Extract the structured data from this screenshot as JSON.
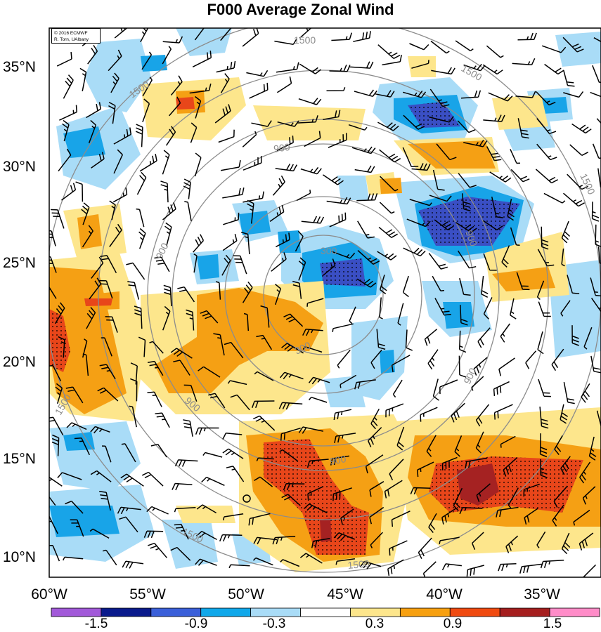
{
  "title": "F000 Average Zonal Wind",
  "copyright": {
    "line1": "© 2016 ECMWF",
    "line2": "R. Torn, UAlbany"
  },
  "map": {
    "lat_labels": [
      "35°N",
      "30°N",
      "25°N",
      "20°N",
      "15°N",
      "10°N"
    ],
    "lon_labels": [
      "60°W",
      "55°W",
      "50°W",
      "45°W",
      "40°W",
      "35°W"
    ],
    "contour_labels": [
      "1500",
      "1500",
      "1500",
      "1500",
      "900",
      "900",
      "900",
      "900",
      "900",
      "300",
      "300",
      "900",
      "1500",
      "1500",
      "1500"
    ],
    "contour_color": "#8c8c8c"
  },
  "colorbar": {
    "labels": [
      "-1.5",
      "-0.9",
      "-0.3",
      "0.3",
      "0.9",
      "1.5"
    ],
    "colors": [
      "#a259d9",
      "#0a1a8c",
      "#3a5fd9",
      "#10a8ea",
      "#a9dcf7",
      "#ffffff",
      "#fde68c",
      "#f7a010",
      "#f04a10",
      "#a51e1e",
      "#ff8cc8"
    ]
  },
  "shading": {
    "strong_negative": "#3a4fc4",
    "negative": "#18a4e8",
    "weak_negative": "#a9dcf7",
    "weak_positive": "#fde68c",
    "positive": "#f5a014",
    "strong_positive": "#e8461a",
    "extreme_positive": "#a52222"
  }
}
